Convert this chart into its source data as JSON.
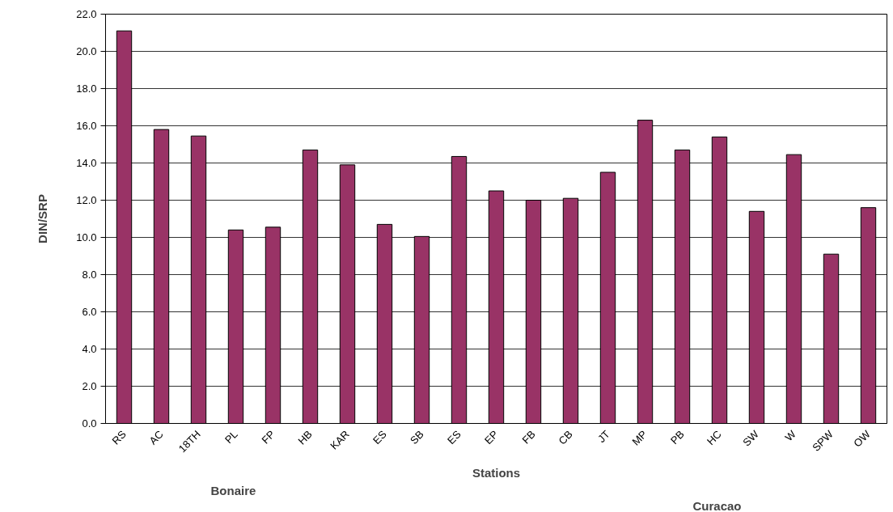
{
  "chart_data": {
    "type": "bar",
    "xlabel": "Stations",
    "ylabel": "DIN/SRP",
    "categories": [
      "RS",
      "AC",
      "18TH",
      "PL",
      "FP",
      "HB",
      "KAR",
      "ES",
      "SB",
      "ES",
      "EP",
      "FB",
      "CB",
      "JT",
      "MP",
      "PB",
      "HC",
      "SW",
      "W",
      "SPW",
      "OW"
    ],
    "values": [
      21.1,
      15.8,
      15.45,
      10.4,
      10.55,
      14.7,
      13.9,
      10.7,
      10.05,
      14.35,
      12.5,
      12.0,
      12.1,
      13.5,
      16.3,
      14.7,
      15.4,
      11.4,
      14.45,
      9.1,
      11.6
    ],
    "color": "#993366",
    "ylim": [
      0,
      22
    ],
    "yticks": [
      {
        "value": 0,
        "label": "0.0"
      },
      {
        "value": 2,
        "label": "2.0"
      },
      {
        "value": 4,
        "label": "4.0"
      },
      {
        "value": 6,
        "label": "6.0"
      },
      {
        "value": 8,
        "label": "8.0"
      },
      {
        "value": 10,
        "label": "10.0"
      },
      {
        "value": 12,
        "label": "12.0"
      },
      {
        "value": 14,
        "label": "14.0"
      },
      {
        "value": 16,
        "label": "16.0"
      },
      {
        "value": 18,
        "label": "18.0"
      },
      {
        "value": 20,
        "label": "20.0"
      },
      {
        "value": 22,
        "label": "22.0"
      }
    ],
    "grid": "y",
    "annotations": [
      "Bonaire",
      "Curacao"
    ]
  }
}
